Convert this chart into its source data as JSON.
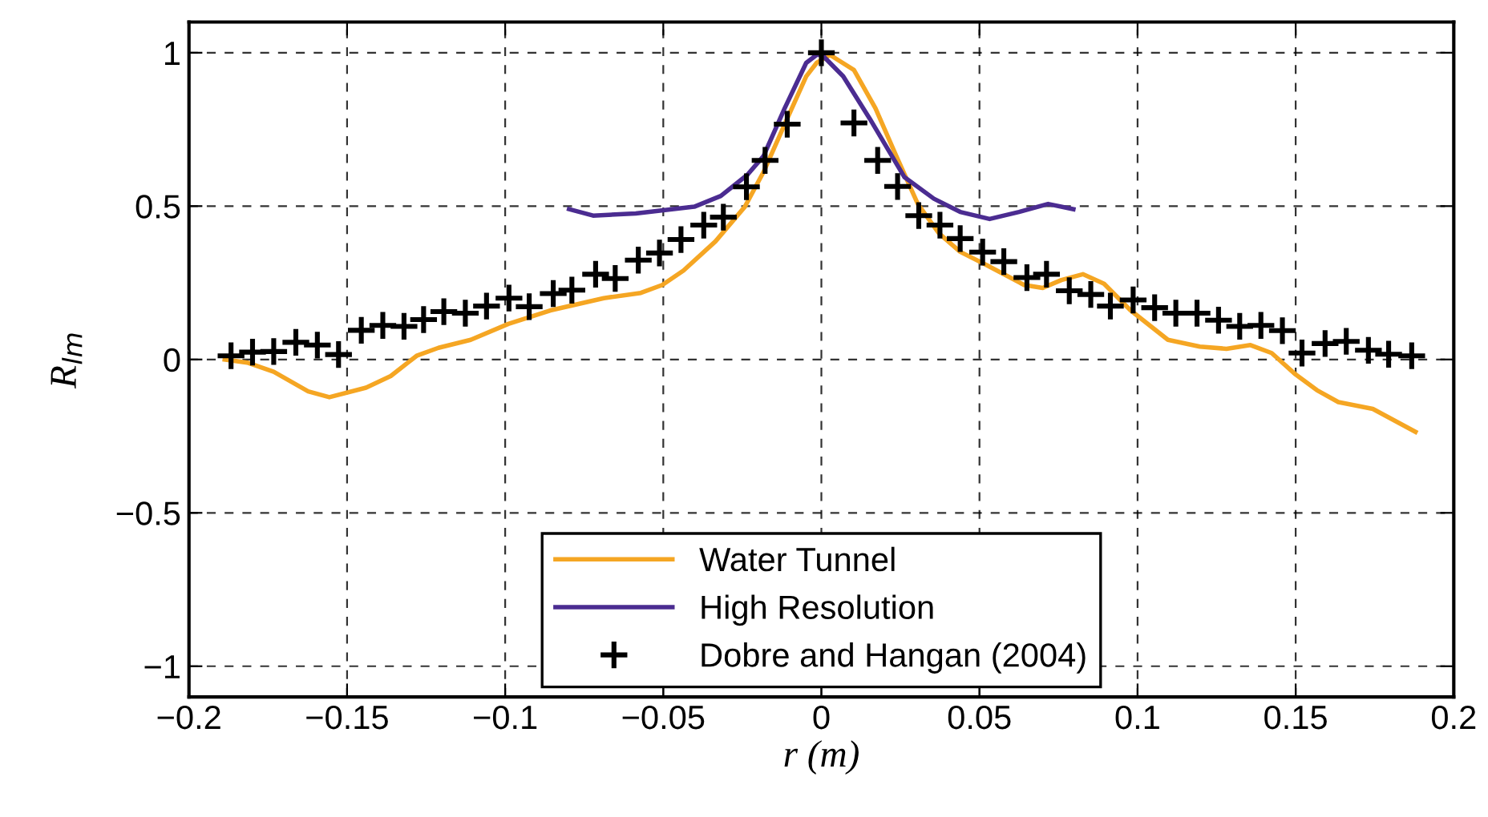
{
  "chart_data": {
    "type": "line",
    "xlabel": "r (m)",
    "ylabel": "R$_{lm}$",
    "xlim": [
      -0.2,
      0.2
    ],
    "ylim": [
      -1.1,
      1.1
    ],
    "xticks": [
      {
        "value": -0.2,
        "label": "−0.2"
      },
      {
        "value": -0.15,
        "label": "−0.15"
      },
      {
        "value": -0.1,
        "label": "−0.1"
      },
      {
        "value": -0.05,
        "label": "−0.05"
      },
      0,
      0.05,
      0.1,
      0.15,
      0.2
    ],
    "yticks": [
      {
        "value": -1,
        "label": "−1"
      },
      {
        "value": -0.5,
        "label": "−0.5"
      },
      0,
      0.5,
      1
    ],
    "grid": true,
    "legend": "bottom",
    "series": [
      {
        "name": "Water Tunnel",
        "color": "#f5a623",
        "line_style": "solid",
        "marker": "none",
        "x": [
          -0.1887,
          -0.1816,
          -0.1732,
          -0.1623,
          -0.1556,
          -0.144,
          -0.1362,
          -0.128,
          -0.1211,
          -0.1109,
          -0.099,
          -0.0857,
          -0.0688,
          -0.0571,
          -0.0503,
          -0.0436,
          -0.0335,
          -0.0242,
          -0.0183,
          -0.0116,
          -0.0048,
          -0.0015,
          0.0027,
          0.0103,
          0.0171,
          0.0237,
          0.0305,
          0.0372,
          0.0439,
          0.0524,
          0.0641,
          0.07,
          0.0759,
          0.0827,
          0.0894,
          0.0978,
          0.1096,
          0.1197,
          0.1281,
          0.1357,
          0.1424,
          0.15,
          0.1567,
          0.1635,
          0.1744,
          0.1879
        ],
        "values": [
          0.0,
          -0.01,
          -0.04,
          -0.104,
          -0.123,
          -0.092,
          -0.054,
          0.012,
          0.038,
          0.064,
          0.116,
          0.16,
          0.2,
          0.217,
          0.243,
          0.29,
          0.385,
          0.498,
          0.611,
          0.767,
          0.923,
          0.967,
          0.993,
          0.944,
          0.819,
          0.663,
          0.507,
          0.411,
          0.351,
          0.307,
          0.243,
          0.233,
          0.259,
          0.278,
          0.247,
          0.16,
          0.064,
          0.042,
          0.035,
          0.047,
          0.021,
          -0.049,
          -0.1,
          -0.139,
          -0.161,
          -0.236
        ]
      },
      {
        "name": "High Resolution",
        "color": "#4b2c91",
        "line_style": "solid",
        "marker": "none",
        "x": [
          -0.0798,
          -0.0722,
          -0.0587,
          -0.0402,
          -0.0318,
          -0.0234,
          -0.0183,
          -0.0116,
          -0.0048,
          -0.0015,
          0.0002,
          0.0069,
          0.0153,
          0.0263,
          0.0356,
          0.0439,
          0.0532,
          0.0625,
          0.0717,
          0.0797
        ],
        "values": [
          0.49,
          0.469,
          0.476,
          0.498,
          0.533,
          0.602,
          0.663,
          0.819,
          0.967,
          0.993,
          0.993,
          0.923,
          0.785,
          0.594,
          0.524,
          0.481,
          0.458,
          0.481,
          0.507,
          0.49
        ]
      },
      {
        "name": "Dobre and Hangan (2004)",
        "type": "scatter",
        "color": "#000000",
        "marker": "cross",
        "x": [
          -0.1867,
          -0.1799,
          -0.1732,
          -0.1662,
          -0.1594,
          -0.1527,
          -0.1455,
          -0.1387,
          -0.132,
          -0.1258,
          -0.1194,
          -0.1126,
          -0.1059,
          -0.0988,
          -0.0924,
          -0.0848,
          -0.0789,
          -0.0714,
          -0.0652,
          -0.0579,
          -0.0512,
          -0.0444,
          -0.0372,
          -0.031,
          -0.0237,
          -0.0178,
          -0.0108,
          0.0,
          0.0103,
          0.0178,
          0.0241,
          0.0308,
          0.0375,
          0.0439,
          0.051,
          0.0577,
          0.065,
          0.0712,
          0.0784,
          0.0852,
          0.0914,
          0.0986,
          0.1054,
          0.1121,
          0.1188,
          0.1256,
          0.1323,
          0.139,
          0.1458,
          0.152,
          0.1593,
          0.166,
          0.173,
          0.1794,
          0.1867
        ],
        "values": [
          0.012,
          0.024,
          0.026,
          0.056,
          0.047,
          0.016,
          0.095,
          0.111,
          0.108,
          0.13,
          0.156,
          0.151,
          0.174,
          0.2,
          0.172,
          0.215,
          0.226,
          0.278,
          0.264,
          0.324,
          0.347,
          0.391,
          0.438,
          0.464,
          0.563,
          0.649,
          0.767,
          1.0,
          0.771,
          0.649,
          0.564,
          0.469,
          0.438,
          0.394,
          0.35,
          0.319,
          0.267,
          0.278,
          0.224,
          0.212,
          0.174,
          0.194,
          0.169,
          0.151,
          0.151,
          0.128,
          0.108,
          0.111,
          0.094,
          0.021,
          0.052,
          0.059,
          0.03,
          0.017,
          0.012
        ]
      }
    ]
  }
}
